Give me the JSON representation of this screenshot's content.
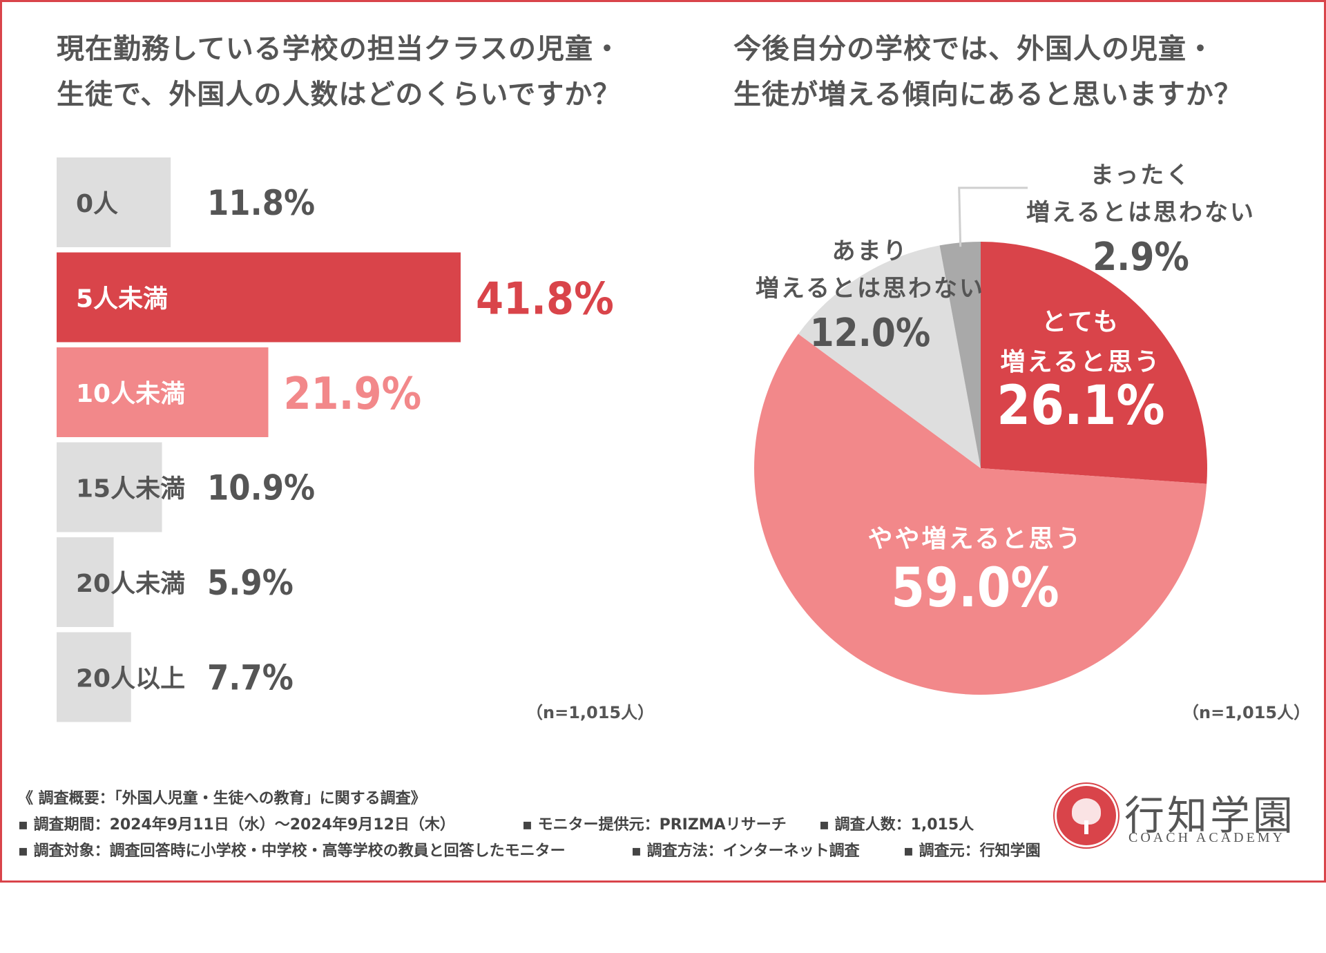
{
  "colors": {
    "frame": "#d9444a",
    "dark_red": "#d9444a",
    "pink": "#f2888a",
    "light_gray": "#dedede",
    "mid_gray": "#a9a9a9",
    "text": "#555555",
    "white": "#ffffff"
  },
  "bar_chart": {
    "title_lines": [
      "現在勤務している学校の担当クラスの児童・",
      "生徒で、外国人の人数はどのくらいですか？"
    ],
    "n_note": "（n=1,015人）"
  },
  "pie_chart": {
    "title_lines": [
      "今後自分の学校では、外国人の児童・",
      "生徒が増える傾向にあると思いますか？"
    ],
    "n_note": "（n=1,015人）"
  },
  "chart_data": [
    {
      "type": "bar",
      "orientation": "horizontal",
      "title": "現在勤務している学校の担当クラスの児童・生徒で、外国人の人数はどのくらいですか？",
      "categories": [
        "0人",
        "5人未満",
        "10人未満",
        "15人未満",
        "20人未満",
        "20人以上"
      ],
      "values": [
        11.8,
        41.8,
        21.9,
        10.9,
        5.9,
        7.7
      ],
      "value_labels": [
        "11.8%",
        "41.8%",
        "21.9%",
        "10.9%",
        "5.9%",
        "7.7%"
      ],
      "bar_colors": [
        "#dedede",
        "#d9444a",
        "#f2888a",
        "#dedede",
        "#dedede",
        "#dedede"
      ],
      "label_colors": [
        "#555555",
        "#ffffff",
        "#ffffff",
        "#555555",
        "#555555",
        "#555555"
      ],
      "value_colors": [
        "#555555",
        "#d9444a",
        "#f2888a",
        "#555555",
        "#555555",
        "#555555"
      ],
      "unit": "%",
      "grid": false,
      "n": "（n=1,015人）"
    },
    {
      "type": "pie",
      "title": "今後自分の学校では、外国人の児童・生徒が増える傾向にあると思いますか？",
      "slices": [
        {
          "label_lines": [
            "とても",
            "増えると思う"
          ],
          "value": 26.1,
          "value_label": "26.1%",
          "color": "#d9444a",
          "text_color": "#ffffff"
        },
        {
          "label_lines": [
            "やや増えると思う"
          ],
          "value": 59.0,
          "value_label": "59.0%",
          "color": "#f2888a",
          "text_color": "#ffffff"
        },
        {
          "label_lines": [
            "あまり",
            "増えるとは思わない"
          ],
          "value": 12.0,
          "value_label": "12.0%",
          "color": "#dedede",
          "text_color": "#555555"
        },
        {
          "label_lines": [
            "まったく",
            "増えるとは思わない"
          ],
          "value": 2.9,
          "value_label": "2.9%",
          "color": "#a9a9a9",
          "text_color": "#555555"
        }
      ],
      "start": "12 o'clock",
      "direction": "clockwise",
      "legend": "none",
      "n": "（n=1,015人）"
    }
  ],
  "footer": {
    "line1": "《 調査概要：「外国人児童・生徒への教育」に関する調査》",
    "line2_a": "▪ 調査期間：2024年9月11日（水）～2024年9月12日（木）",
    "line2_b": "▪ モニター提供元：PRIZMAリサーチ",
    "line2_c": "▪ 調査人数：1,015人",
    "line3_a": "▪ 調査対象：調査回答時に小学校・中学校・高等学校の教員と回答したモニター",
    "line3_b": "▪ 調査方法：インターネット調査",
    "line3_c": "▪ 調査元：行知学園"
  },
  "logo": {
    "name": "行知学園",
    "sub": "COACH ACADEMY",
    "icon": "tree-seal-icon"
  }
}
